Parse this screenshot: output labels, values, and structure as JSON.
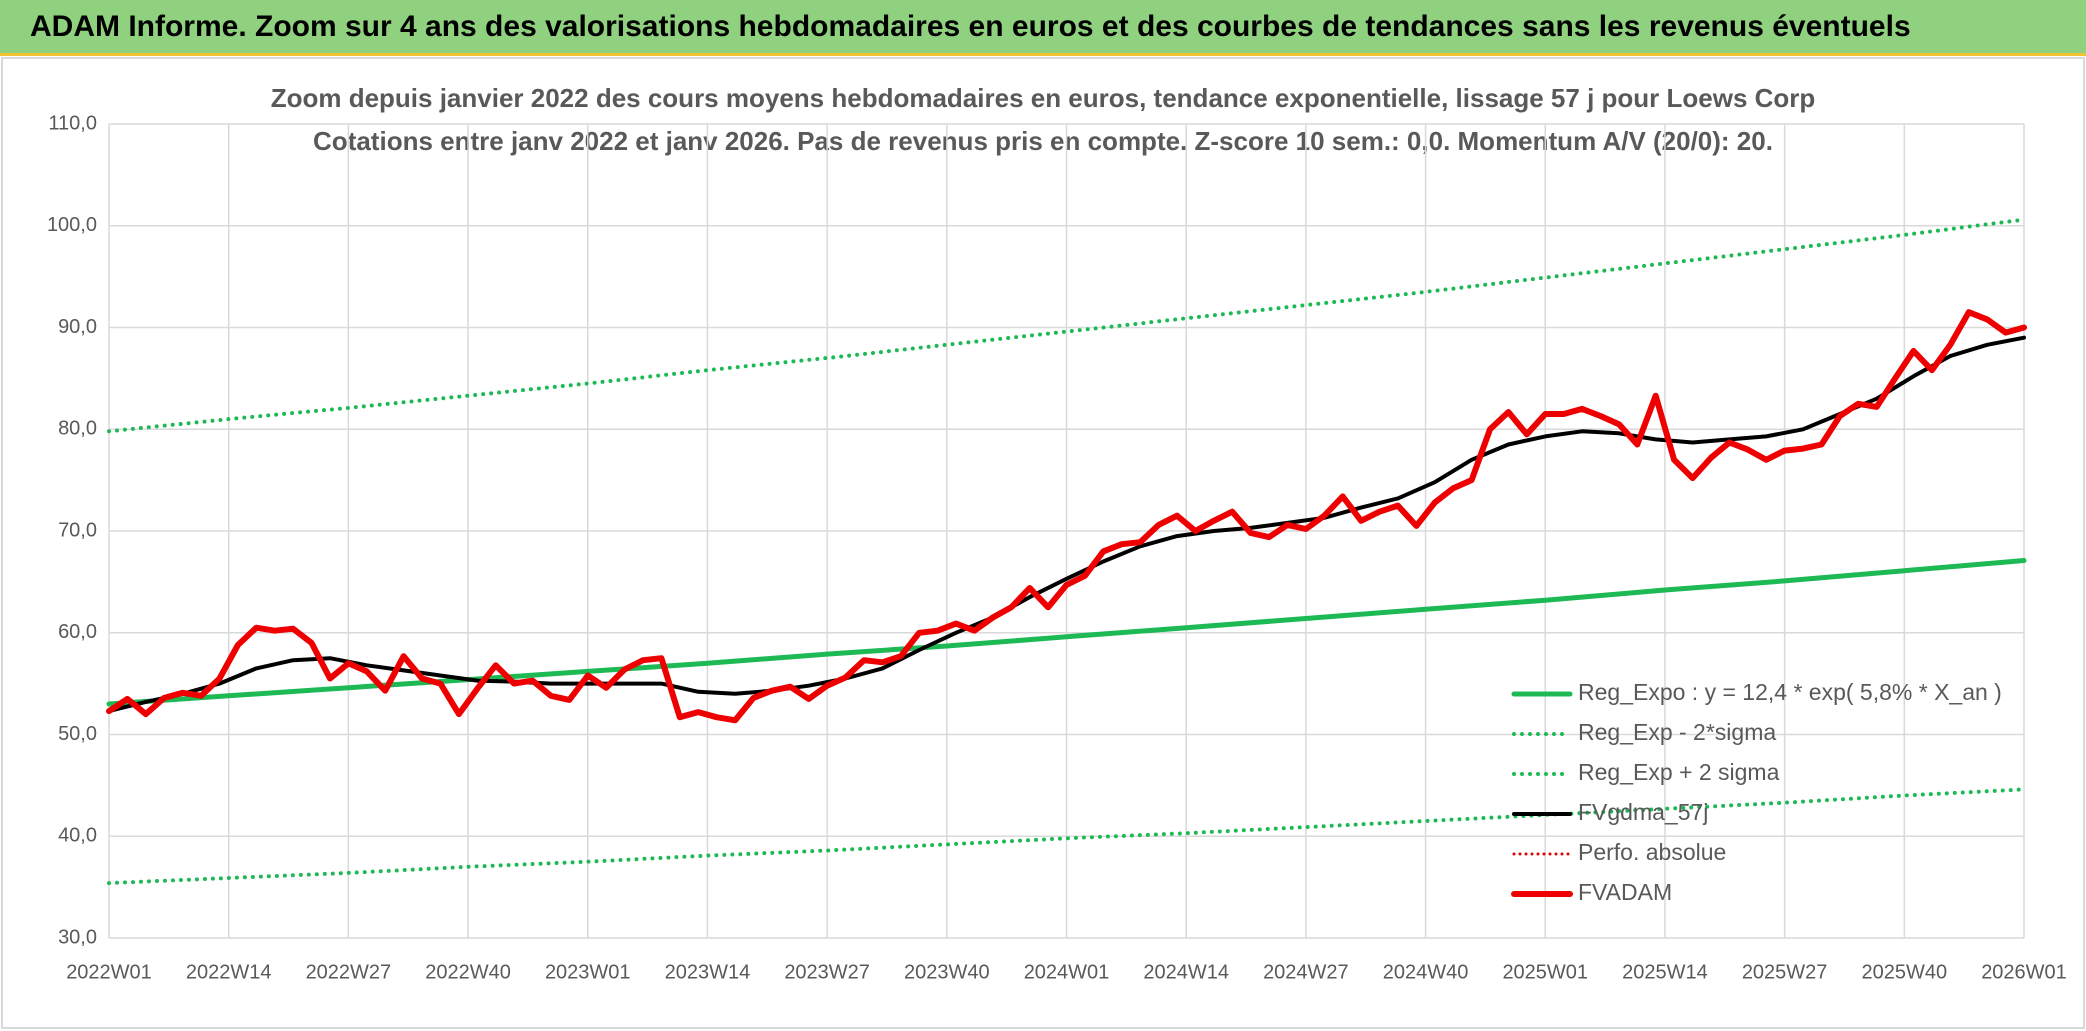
{
  "header": {
    "title": "ADAM Informe. Zoom sur 4 ans des valorisations hebdomadaires en euros et des courbes de tendances sans les revenus éventuels"
  },
  "chart_data": {
    "type": "line",
    "title": "Zoom depuis janvier 2022 des cours moyens hebdomadaires en euros, tendance exponentielle, lissage 57 j pour Loews Corp",
    "subtitle": "Cotations entre janv 2022 et janv 2026. Pas de revenus pris en compte. Z-score 10 sem.: 0,0. Momentum A/V (20/0): 20.",
    "xlim": [
      0,
      208
    ],
    "xticks": [
      {
        "value": 0,
        "label": "2022W01"
      },
      {
        "value": 13,
        "label": "2022W14"
      },
      {
        "value": 26,
        "label": "2022W27"
      },
      {
        "value": 39,
        "label": "2022W40"
      },
      {
        "value": 52,
        "label": "2023W01"
      },
      {
        "value": 65,
        "label": "2023W14"
      },
      {
        "value": 78,
        "label": "2023W27"
      },
      {
        "value": 91,
        "label": "2023W40"
      },
      {
        "value": 104,
        "label": "2024W01"
      },
      {
        "value": 117,
        "label": "2024W14"
      },
      {
        "value": 130,
        "label": "2024W27"
      },
      {
        "value": 143,
        "label": "2024W40"
      },
      {
        "value": 156,
        "label": "2025W01"
      },
      {
        "value": 169,
        "label": "2025W14"
      },
      {
        "value": 182,
        "label": "2025W27"
      },
      {
        "value": 195,
        "label": "2025W40"
      },
      {
        "value": 208,
        "label": "2026W01"
      }
    ],
    "ylim": [
      30,
      110
    ],
    "yticks": [
      {
        "value": 30,
        "label": "30,0"
      },
      {
        "value": 40,
        "label": "40,0"
      },
      {
        "value": 50,
        "label": "50,0"
      },
      {
        "value": 60,
        "label": "60,0"
      },
      {
        "value": 70,
        "label": "70,0"
      },
      {
        "value": 80,
        "label": "80,0"
      },
      {
        "value": 90,
        "label": "90,0"
      },
      {
        "value": 100,
        "label": "100,0"
      },
      {
        "value": 110,
        "label": "110,0"
      }
    ],
    "grid": true,
    "legend": "lower-right",
    "series": [
      {
        "name": "Reg_Expo : y = 12,4 * exp( 5,8% *  X_an )",
        "color": "#1db954",
        "style": "solid",
        "width": 5,
        "x": [
          0,
          13,
          26,
          39,
          52,
          65,
          78,
          91,
          104,
          117,
          130,
          143,
          156,
          169,
          182,
          195,
          208
        ],
        "values": [
          53.0,
          53.8,
          54.6,
          55.4,
          56.2,
          57.0,
          57.9,
          58.7,
          59.6,
          60.5,
          61.4,
          62.3,
          63.2,
          64.2,
          65.1,
          66.1,
          67.1
        ]
      },
      {
        "name": "Reg_Exp - 2*sigma",
        "color": "#1db954",
        "style": "dotted",
        "width": 4,
        "x": [
          0,
          13,
          26,
          39,
          52,
          65,
          78,
          91,
          104,
          117,
          130,
          143,
          156,
          169,
          182,
          195,
          208
        ],
        "values": [
          35.4,
          35.9,
          36.4,
          37.0,
          37.5,
          38.1,
          38.6,
          39.2,
          39.8,
          40.3,
          40.9,
          41.5,
          42.1,
          42.7,
          43.3,
          44.0,
          44.6
        ]
      },
      {
        "name": "Reg_Exp + 2 sigma",
        "color": "#1db954",
        "style": "dotted",
        "width": 4,
        "x": [
          0,
          13,
          26,
          39,
          52,
          65,
          78,
          91,
          104,
          117,
          130,
          143,
          156,
          169,
          182,
          195,
          208
        ],
        "values": [
          79.8,
          81.0,
          82.1,
          83.3,
          84.5,
          85.8,
          87.0,
          88.3,
          89.6,
          90.9,
          92.2,
          93.5,
          94.9,
          96.3,
          97.7,
          99.1,
          100.6
        ]
      },
      {
        "name": "FVgdma_57j",
        "color": "#000000",
        "style": "solid",
        "width": 4,
        "x": [
          0,
          4,
          8,
          12,
          16,
          20,
          24,
          28,
          32,
          36,
          40,
          44,
          48,
          52,
          56,
          60,
          64,
          68,
          72,
          76,
          80,
          84,
          88,
          92,
          96,
          100,
          104,
          108,
          112,
          116,
          120,
          124,
          128,
          132,
          136,
          140,
          144,
          148,
          152,
          156,
          160,
          164,
          168,
          172,
          176,
          180,
          184,
          188,
          192,
          196,
          200,
          204,
          208
        ],
        "values": [
          52.3,
          53.2,
          54.0,
          55.0,
          56.5,
          57.3,
          57.5,
          56.8,
          56.3,
          55.8,
          55.3,
          55.2,
          55.0,
          55.0,
          55.0,
          55.0,
          54.2,
          54.0,
          54.3,
          54.8,
          55.5,
          56.5,
          58.3,
          60.0,
          61.5,
          63.5,
          65.3,
          67.0,
          68.5,
          69.5,
          70.0,
          70.3,
          70.8,
          71.3,
          72.3,
          73.2,
          74.8,
          77.0,
          78.5,
          79.3,
          79.8,
          79.6,
          79.0,
          78.7,
          79.0,
          79.3,
          80.0,
          81.5,
          83.0,
          85.2,
          87.2,
          88.3,
          89.0
        ]
      },
      {
        "name": "Perfo. absolue",
        "color": "#e00000",
        "style": "dotted",
        "width": 3
      },
      {
        "name": "FVADAM",
        "color": "#ee0000",
        "style": "solid",
        "width": 6,
        "x": [
          0,
          2,
          4,
          6,
          8,
          10,
          12,
          14,
          16,
          18,
          20,
          22,
          24,
          26,
          28,
          30,
          32,
          34,
          36,
          38,
          40,
          42,
          44,
          46,
          48,
          50,
          52,
          54,
          56,
          58,
          60,
          62,
          64,
          66,
          68,
          70,
          72,
          74,
          76,
          78,
          80,
          82,
          84,
          86,
          88,
          90,
          92,
          94,
          96,
          98,
          100,
          102,
          104,
          106,
          108,
          110,
          112,
          114,
          116,
          118,
          120,
          122,
          124,
          126,
          128,
          130,
          132,
          134,
          136,
          138,
          140,
          142,
          144,
          146,
          148,
          150,
          152,
          154,
          156,
          158,
          160,
          162,
          164,
          166,
          168,
          170,
          172,
          174,
          176,
          178,
          180,
          182,
          184,
          186,
          188,
          190,
          192,
          194,
          196,
          198,
          200,
          202,
          204,
          206,
          208
        ],
        "values": [
          52.3,
          53.5,
          52.0,
          53.6,
          54.1,
          53.8,
          55.5,
          58.8,
          60.5,
          60.2,
          60.4,
          59.0,
          55.5,
          57.0,
          56.2,
          54.3,
          57.7,
          55.5,
          55.0,
          52.0,
          54.5,
          56.8,
          55.0,
          55.3,
          53.8,
          53.4,
          55.8,
          54.6,
          56.4,
          57.3,
          57.5,
          51.7,
          52.2,
          51.7,
          51.4,
          53.6,
          54.3,
          54.7,
          53.5,
          54.8,
          55.6,
          57.3,
          57.1,
          57.7,
          60.0,
          60.2,
          60.9,
          60.2,
          61.5,
          62.5,
          64.4,
          62.5,
          64.7,
          65.6,
          68.0,
          68.7,
          68.9,
          70.6,
          71.5,
          70.0,
          71.0,
          71.9,
          69.8,
          69.4,
          70.6,
          70.2,
          71.5,
          73.4,
          71.0,
          71.9,
          72.5,
          70.5,
          72.8,
          74.2,
          75.0,
          80.0,
          81.7,
          79.5,
          81.5,
          81.5,
          82.0,
          81.3,
          80.5,
          78.5,
          83.3,
          77.0,
          75.2,
          77.2,
          78.7,
          78.0,
          77.0,
          77.9,
          78.1,
          78.5,
          81.3,
          82.5,
          82.2,
          85.0,
          87.7,
          85.8,
          88.3,
          91.5,
          90.8,
          89.5,
          90.0
        ]
      }
    ]
  }
}
